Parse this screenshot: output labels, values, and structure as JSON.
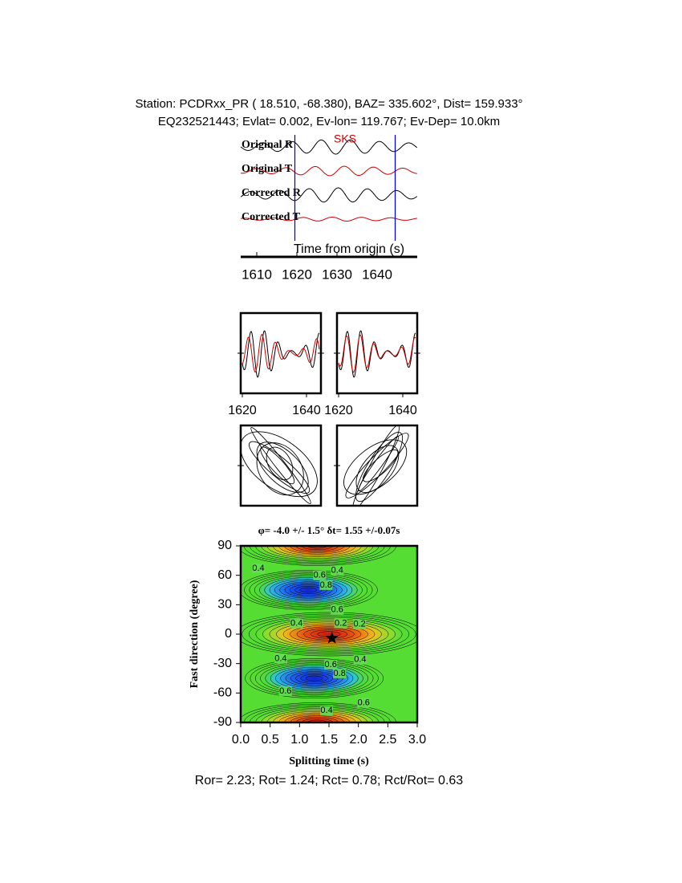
{
  "header": {
    "line1": "Station: PCDRxx_PR (  18.510,  -68.380), BAZ=  335.602°, Dist=  159.933°",
    "line2": "EQ232521443; Evlat=   0.002, Ev-lon= 119.767; Ev-Dep= 10.0km"
  },
  "chart_data": [
    {
      "type": "traces",
      "traces": [
        {
          "name": "Original R",
          "color": "#000000"
        },
        {
          "name": "Original T",
          "color": "#cc0000"
        },
        {
          "name": "Corrected R",
          "color": "#000000"
        },
        {
          "name": "Corrected T",
          "color": "#cc0000"
        }
      ],
      "phase": "SKS",
      "phase_color": "#cc0000",
      "markers": [
        1619.5,
        1644.5
      ],
      "marker_color": "#0000cc",
      "xlabel": "Time from origin (s)",
      "xlim": [
        1606,
        1650
      ],
      "xticks": [
        1610,
        1620,
        1630,
        1640
      ]
    },
    {
      "type": "window",
      "xlim": [
        1619.5,
        1644.5
      ],
      "xticks": [
        1620,
        1640
      ],
      "series": [
        {
          "color": "#000000"
        },
        {
          "color": "#cc0000"
        }
      ]
    },
    {
      "type": "window",
      "xlim": [
        1619.5,
        1644.5
      ],
      "xticks": [
        1620,
        1640
      ],
      "series": [
        {
          "color": "#000000"
        },
        {
          "color": "#cc0000"
        }
      ]
    },
    {
      "type": "particle-motion"
    },
    {
      "type": "particle-motion"
    },
    {
      "type": "grid-search",
      "title": "φ= -4.0 +/- 1.5° δt= 1.55 +/-0.07s",
      "xlabel": "Splitting time (s)",
      "ylabel": "Fast direction (degree)",
      "xlim": [
        0,
        3
      ],
      "ylim": [
        -90,
        90
      ],
      "xticks": [
        {
          "value": 0,
          "label": "0.0"
        },
        0.5,
        {
          "value": 1,
          "label": "1.0"
        },
        1.5,
        {
          "value": 2,
          "label": "2.0"
        },
        2.5,
        {
          "value": 3,
          "label": "3.0"
        }
      ],
      "yticks": [
        90,
        60,
        30,
        0,
        -30,
        -60,
        -90
      ],
      "best": {
        "x": 1.55,
        "y": -4.0
      },
      "contour_labels": [
        {
          "x": 0.3,
          "y": 67,
          "value": 0.4
        },
        {
          "x": 1.34,
          "y": 60,
          "value": 0.6
        },
        {
          "x": 1.64,
          "y": 65,
          "value": 0.4
        },
        {
          "x": 1.45,
          "y": 50,
          "value": 0.8
        },
        {
          "x": 1.64,
          "y": 25,
          "value": 0.6
        },
        {
          "x": 0.95,
          "y": 11,
          "value": 0.4
        },
        {
          "x": 1.7,
          "y": 11,
          "value": 0.2
        },
        {
          "x": 2.02,
          "y": 10,
          "value": 0.2
        },
        {
          "x": 0.68,
          "y": -25,
          "value": 0.4
        },
        {
          "x": 1.53,
          "y": -31,
          "value": 0.6
        },
        {
          "x": 2.03,
          "y": -26,
          "value": 0.4
        },
        {
          "x": 1.68,
          "y": -40,
          "value": 0.8
        },
        {
          "x": 0.76,
          "y": -58,
          "value": 0.6
        },
        {
          "x": 2.09,
          "y": -70,
          "value": 0.6
        },
        {
          "x": 1.46,
          "y": -78,
          "value": 0.4
        }
      ]
    }
  ],
  "footer": "Ror= 2.23; Rot= 1.24; Rct= 0.78; Rct/Rot= 0.63"
}
